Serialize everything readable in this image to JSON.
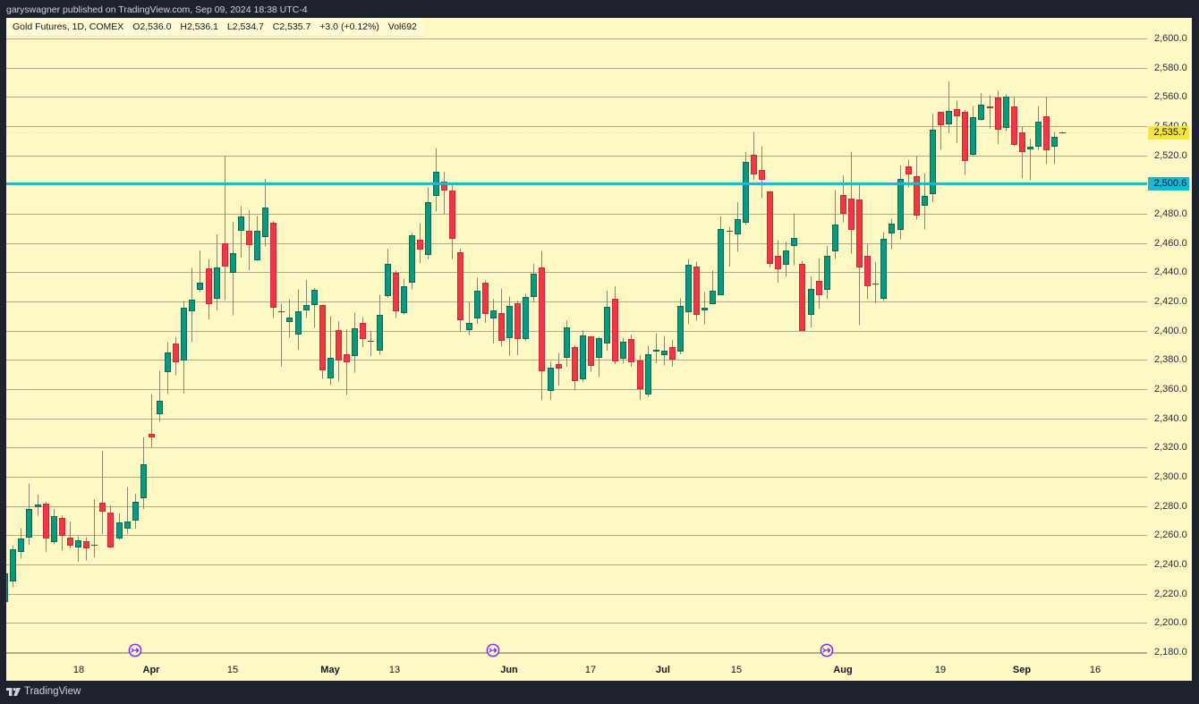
{
  "header": {
    "published_info": "garyswagner published on TradingView.com, Sep 09, 2024 18:38 UTC-4"
  },
  "legend": {
    "symbol": "Gold Futures, 1D, COMEX",
    "open_label": "O",
    "open": "2,536.0",
    "high_label": "H",
    "high": "2,536.1",
    "low_label": "L",
    "low": "2,534.7",
    "close_label": "C",
    "close": "2,535.7",
    "change": "+3.0 (+0.12%)",
    "volume_label": "Vol",
    "volume": "692"
  },
  "price_axis": {
    "labels": [
      "2,600.0",
      "2,580.0",
      "2,560.0",
      "2,540.0",
      "2,520.0",
      "2,500.0",
      "2,480.0",
      "2,460.0",
      "2,440.0",
      "2,420.0",
      "2,400.0",
      "2,380.0",
      "2,360.0",
      "2,340.0",
      "2,320.0",
      "2,300.0",
      "2,280.0",
      "2,260.0",
      "2,240.0",
      "2,220.0",
      "2,200.0",
      "2,180.0"
    ]
  },
  "price_badges": {
    "last_price": "2,535.7",
    "horizontal_line": "2,500.6"
  },
  "time_axis": {
    "labels": [
      {
        "text": "18",
        "month": false
      },
      {
        "text": "Apr",
        "month": true
      },
      {
        "text": "15",
        "month": false
      },
      {
        "text": "May",
        "month": true
      },
      {
        "text": "13",
        "month": false
      },
      {
        "text": "Jun",
        "month": true
      },
      {
        "text": "17",
        "month": false
      },
      {
        "text": "Jul",
        "month": true
      },
      {
        "text": "15",
        "month": false
      },
      {
        "text": "Aug",
        "month": true
      },
      {
        "text": "19",
        "month": false
      },
      {
        "text": "Sep",
        "month": true
      },
      {
        "text": "16",
        "month": false
      }
    ]
  },
  "markers": [
    {
      "icon": "rollover-arrow-icon"
    },
    {
      "icon": "rollover-arrow-icon"
    },
    {
      "icon": "rollover-arrow-icon"
    }
  ],
  "footer": {
    "brand": "TradingView",
    "logo_icon": "tradingview-logo-icon"
  },
  "colors": {
    "page_bg": "#1e222d",
    "chart_bg": "#fef8c4",
    "grid": "#b1ab8c",
    "up": "#089981",
    "up_border": "#0a6656",
    "down": "#f23645",
    "down_border": "#c22b3b",
    "wick": "#8a8571",
    "hline": "#1fb5d5",
    "last_price_badge": "#f5e63c",
    "last_price_line": "#e8c95a",
    "marker": "#7b2ff5"
  },
  "chart_data": {
    "type": "candlestick",
    "title": "Gold Futures, 1D, COMEX",
    "xlabel": "",
    "ylabel": "",
    "x_tick_labels": [
      "18",
      "Apr",
      "15",
      "May",
      "13",
      "Jun",
      "17",
      "Jul",
      "15",
      "Aug",
      "19",
      "Sep",
      "16"
    ],
    "y_ticks": [
      2600,
      2580,
      2560,
      2540,
      2520,
      2500,
      2480,
      2460,
      2440,
      2420,
      2400,
      2380,
      2360,
      2340,
      2320,
      2300,
      2280,
      2260,
      2240,
      2220,
      2200,
      2180
    ],
    "ylim": [
      2179,
      2614
    ],
    "grid": true,
    "legend_position": "top-left",
    "last_price": 2535.7,
    "last_bar": {
      "open": 2536.0,
      "high": 2536.1,
      "low": 2534.7,
      "close": 2535.7,
      "change": 3.0,
      "change_pct": 0.12,
      "volume": 692
    },
    "horizontal_lines": [
      {
        "price": 2500.6,
        "color": "#1fb5d5"
      }
    ],
    "series": [
      {
        "name": "Gold Futures",
        "columns": [
          "open",
          "high",
          "low",
          "close"
        ],
        "values": [
          [
            2215.1,
            2234.0,
            2215.0,
            2233.9
          ],
          [
            2229.0,
            2253.0,
            2224.5,
            2250.4
          ],
          [
            2249.0,
            2264.7,
            2244.0,
            2257.6
          ],
          [
            2258.8,
            2295.3,
            2253.5,
            2278.0
          ],
          [
            2279.8,
            2287.8,
            2273.5,
            2281.0
          ],
          [
            2281.4,
            2283.0,
            2248.6,
            2258.4
          ],
          [
            2255.7,
            2278.0,
            2253.7,
            2273.0
          ],
          [
            2271.6,
            2273.7,
            2249.4,
            2259.8
          ],
          [
            2258.6,
            2269.4,
            2251.0,
            2253.9
          ],
          [
            2252.2,
            2259.2,
            2241.8,
            2256.5
          ],
          [
            2256.1,
            2258.6,
            2242.9,
            2252.0
          ],
          [
            2253.6,
            2284.7,
            2244.9,
            2253.4
          ],
          [
            2282.4,
            2317.8,
            2260.8,
            2276.9
          ],
          [
            2275.7,
            2280.4,
            2251.0,
            2252.7
          ],
          [
            2258.8,
            2275.0,
            2256.9,
            2269.0
          ],
          [
            2265.3,
            2293.0,
            2260.8,
            2269.6
          ],
          [
            2270.8,
            2288.4,
            2264.5,
            2283.0
          ],
          [
            2286.3,
            2327.0,
            2278.0,
            2308.8
          ],
          [
            2329.4,
            2356.7,
            2320.0,
            2327.6
          ],
          [
            2343.3,
            2372.4,
            2337.8,
            2352.0
          ],
          [
            2372.0,
            2392.2,
            2356.5,
            2385.1
          ],
          [
            2391.4,
            2395.5,
            2369.4,
            2379.0
          ],
          [
            2380.0,
            2420.4,
            2357.0,
            2415.7
          ],
          [
            2414.3,
            2442.9,
            2392.2,
            2421.4
          ],
          [
            2428.6,
            2455.0,
            2426.5,
            2433.0
          ],
          [
            2442.7,
            2449.0,
            2407.8,
            2418.8
          ],
          [
            2422.2,
            2466.0,
            2413.9,
            2443.3
          ],
          [
            2459.8,
            2519.4,
            2421.0,
            2444.7
          ],
          [
            2440.2,
            2474.5,
            2410.6,
            2453.3
          ],
          [
            2469.4,
            2485.3,
            2450.0,
            2478.4
          ],
          [
            2468.4,
            2482.4,
            2441.4,
            2459.0
          ],
          [
            2448.6,
            2478.4,
            2448.0,
            2468.4
          ],
          [
            2464.7,
            2504.0,
            2457.8,
            2484.5
          ],
          [
            2474.0,
            2475.0,
            2408.8,
            2416.7
          ],
          [
            2413.0,
            2418.4,
            2375.5,
            2412.8
          ],
          [
            2406.1,
            2421.4,
            2395.3,
            2408.8
          ],
          [
            2398.0,
            2428.2,
            2387.0,
            2413.0
          ],
          [
            2414.7,
            2434.7,
            2408.8,
            2417.6
          ],
          [
            2418.4,
            2429.2,
            2402.0,
            2428.2
          ],
          [
            2417.6,
            2418.0,
            2367.0,
            2373.5
          ],
          [
            2368.4,
            2409.8,
            2362.7,
            2381.6
          ],
          [
            2400.4,
            2406.5,
            2365.3,
            2380.2
          ],
          [
            2383.7,
            2401.0,
            2355.9,
            2379.0
          ],
          [
            2383.3,
            2412.2,
            2371.4,
            2401.6
          ],
          [
            2405.1,
            2409.2,
            2388.8,
            2394.9
          ],
          [
            2393.0,
            2400.0,
            2382.7,
            2392.8
          ],
          [
            2386.9,
            2424.5,
            2383.7,
            2410.8
          ],
          [
            2424.0,
            2455.7,
            2422.4,
            2445.5
          ],
          [
            2439.6,
            2441.2,
            2408.6,
            2413.9
          ],
          [
            2412.9,
            2435.7,
            2411.2,
            2430.4
          ],
          [
            2433.5,
            2466.7,
            2428.2,
            2465.3
          ],
          [
            2462.0,
            2473.5,
            2446.3,
            2455.9
          ],
          [
            2452.0,
            2498.0,
            2449.0,
            2487.8
          ],
          [
            2492.9,
            2524.9,
            2481.6,
            2509.0
          ],
          [
            2502.0,
            2508.8,
            2479.6,
            2496.7
          ],
          [
            2495.9,
            2501.0,
            2449.0,
            2463.3
          ],
          [
            2453.6,
            2456.2,
            2399.1,
            2407.8
          ],
          [
            2401.0,
            2419.6,
            2397.1,
            2405.1
          ],
          [
            2408.6,
            2436.3,
            2404.7,
            2427.1
          ],
          [
            2433.1,
            2434.5,
            2405.3,
            2412.0
          ],
          [
            2409.0,
            2421.6,
            2391.2,
            2414.1
          ],
          [
            2412.2,
            2428.8,
            2389.0,
            2393.7
          ],
          [
            2395.7,
            2423.3,
            2382.9,
            2416.9
          ],
          [
            2419.0,
            2420.6,
            2383.3,
            2395.3
          ],
          [
            2394.9,
            2425.1,
            2393.1,
            2423.3
          ],
          [
            2423.3,
            2445.7,
            2420.0,
            2438.8
          ],
          [
            2443.5,
            2454.7,
            2352.2,
            2372.9
          ],
          [
            2359.0,
            2378.8,
            2352.2,
            2374.5
          ],
          [
            2377.1,
            2384.9,
            2362.4,
            2374.5
          ],
          [
            2382.0,
            2406.7,
            2375.3,
            2402.4
          ],
          [
            2388.6,
            2390.0,
            2359.0,
            2366.1
          ],
          [
            2367.3,
            2400.2,
            2364.9,
            2396.9
          ],
          [
            2396.1,
            2396.5,
            2372.0,
            2376.7
          ],
          [
            2381.6,
            2395.7,
            2368.2,
            2394.6
          ],
          [
            2392.0,
            2427.5,
            2386.4,
            2416.6
          ],
          [
            2421.6,
            2430.4,
            2377.1,
            2379.2
          ],
          [
            2381.4,
            2395.1,
            2377.3,
            2392.2
          ],
          [
            2394.3,
            2397.3,
            2375.3,
            2378.8
          ],
          [
            2379.8,
            2383.3,
            2352.7,
            2361.0
          ],
          [
            2357.3,
            2389.6,
            2354.9,
            2384.1
          ],
          [
            2386.3,
            2398.2,
            2377.8,
            2387.1
          ],
          [
            2383.9,
            2396.5,
            2376.3,
            2386.5
          ],
          [
            2389.0,
            2393.7,
            2375.3,
            2381.2
          ],
          [
            2386.3,
            2422.2,
            2383.9,
            2417.1
          ],
          [
            2413.7,
            2449.2,
            2404.3,
            2445.3
          ],
          [
            2443.7,
            2447.1,
            2406.7,
            2411.4
          ],
          [
            2414.3,
            2426.3,
            2404.3,
            2415.7
          ],
          [
            2419.0,
            2441.0,
            2418.2,
            2427.3
          ],
          [
            2425.3,
            2478.2,
            2424.3,
            2469.8
          ],
          [
            2468.6,
            2471.2,
            2443.9,
            2468.5
          ],
          [
            2466.8,
            2488.0,
            2454.0,
            2476.5
          ],
          [
            2474.5,
            2522.2,
            2472.2,
            2515.5
          ],
          [
            2520.6,
            2536.1,
            2503.3,
            2507.6
          ],
          [
            2510.0,
            2526.3,
            2490.6,
            2504.1
          ],
          [
            2495.5,
            2495.7,
            2443.3,
            2446.5
          ],
          [
            2451.0,
            2462.0,
            2433.0,
            2442.2
          ],
          [
            2445.5,
            2461.0,
            2436.9,
            2454.7
          ],
          [
            2458.2,
            2480.4,
            2444.7,
            2463.3
          ],
          [
            2445.5,
            2447.8,
            2399.8,
            2400.4
          ],
          [
            2411.2,
            2437.0,
            2402.2,
            2428.6
          ],
          [
            2434.3,
            2449.4,
            2415.1,
            2425.1
          ],
          [
            2428.8,
            2458.0,
            2421.8,
            2451.4
          ],
          [
            2455.1,
            2496.3,
            2449.2,
            2472.9
          ],
          [
            2493.1,
            2506.3,
            2474.3,
            2480.6
          ],
          [
            2490.6,
            2522.2,
            2452.9,
            2469.6
          ],
          [
            2490.0,
            2500.2,
            2403.9,
            2444.1
          ],
          [
            2451.5,
            2459.2,
            2421.5,
            2431.1
          ],
          [
            2432.1,
            2447.0,
            2418.8,
            2432.0
          ],
          [
            2422.8,
            2467.6,
            2420.2,
            2463.1
          ],
          [
            2467.1,
            2476.5,
            2455.9,
            2473.1
          ],
          [
            2469.8,
            2513.1,
            2462.4,
            2503.9
          ],
          [
            2512.4,
            2517.1,
            2498.2,
            2507.6
          ],
          [
            2505.9,
            2519.8,
            2476.1,
            2479.4
          ],
          [
            2485.9,
            2508.0,
            2469.2,
            2492.0
          ],
          [
            2494.1,
            2548.2,
            2488.0,
            2537.6
          ],
          [
            2549.6,
            2549.8,
            2523.9,
            2541.0
          ],
          [
            2542.2,
            2570.6,
            2535.1,
            2550.6
          ],
          [
            2551.8,
            2557.6,
            2528.4,
            2547.3
          ],
          [
            2549.8,
            2551.2,
            2506.5,
            2516.5
          ],
          [
            2520.8,
            2553.9,
            2519.6,
            2546.1
          ],
          [
            2545.1,
            2562.7,
            2543.7,
            2554.9
          ],
          [
            2553.3,
            2561.0,
            2538.6,
            2552.7
          ],
          [
            2559.6,
            2564.3,
            2527.9,
            2538.0
          ],
          [
            2539.1,
            2562.0,
            2536.7,
            2560.1
          ],
          [
            2553.4,
            2560.0,
            2526.3,
            2527.6
          ],
          [
            2535.7,
            2539.6,
            2504.3,
            2522.9
          ],
          [
            2524.3,
            2531.4,
            2502.9,
            2525.7
          ],
          [
            2526.3,
            2553.9,
            2523.7,
            2542.9
          ],
          [
            2546.7,
            2560.0,
            2514.1,
            2524.3
          ],
          [
            2526.3,
            2536.1,
            2514.1,
            2532.7
          ],
          [
            2536.0,
            2536.1,
            2534.7,
            2535.7
          ]
        ]
      }
    ]
  }
}
